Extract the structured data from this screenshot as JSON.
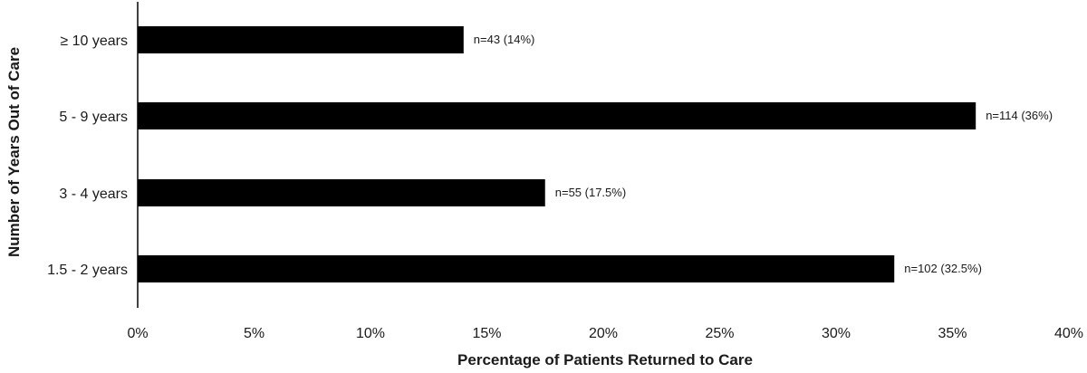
{
  "chart_data": {
    "type": "bar",
    "orientation": "horizontal",
    "categories": [
      "≥ 10 years",
      "5 - 9 years",
      "3 - 4 years",
      "1.5 - 2 years"
    ],
    "values": [
      14,
      36,
      17.5,
      32.5
    ],
    "data_labels": [
      "n=43 (14%)",
      "n=114 (36%)",
      "n=55 (17.5%)",
      "n=102 (32.5%)"
    ],
    "x_ticks": [
      "0%",
      "5%",
      "10%",
      "15%",
      "20%",
      "25%",
      "30%",
      "35%",
      "40%"
    ],
    "xlim": [
      0,
      40
    ],
    "xlabel": "Percentage of Patients Returned to Care",
    "ylabel": "Number of Years Out of Care",
    "title": "",
    "grid": false,
    "bar_color": "#000000"
  }
}
